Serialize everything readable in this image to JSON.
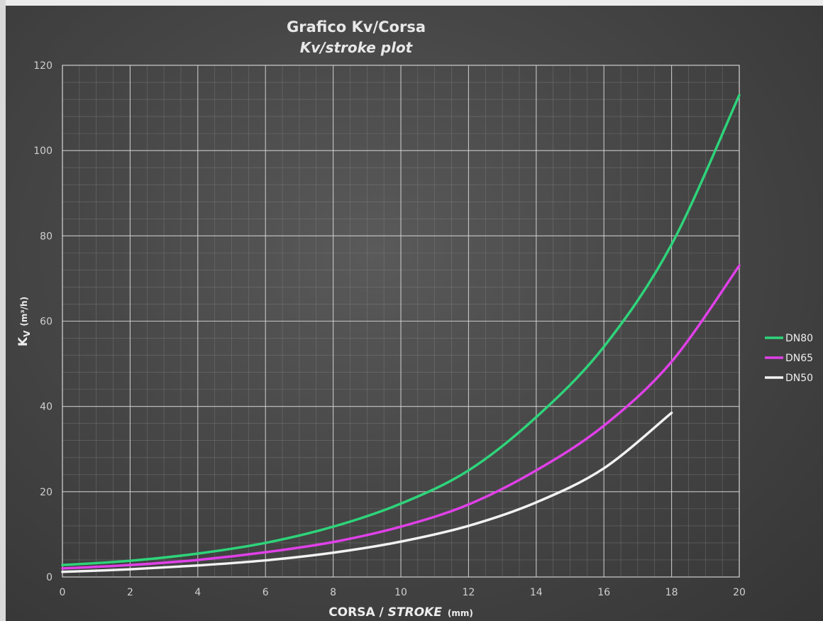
{
  "chart_data": {
    "type": "line",
    "title": "Grafico Kv/Corsa",
    "subtitle": "Kv/stroke plot",
    "xlabel": "CORSA / STROKE",
    "xlabel_main": "CORSA / ",
    "xlabel_italic": "STROKE",
    "xunit": "(mm)",
    "ylabel_symbol": "K",
    "ylabel_sub": "V",
    "yunit": "(m³/h)",
    "xlim": [
      0,
      20
    ],
    "ylim": [
      0,
      120
    ],
    "xticks": [
      "0",
      "2",
      "4",
      "6",
      "8",
      "10",
      "12",
      "14",
      "16",
      "18",
      "20"
    ],
    "yticks": [
      "0",
      "20",
      "40",
      "60",
      "80",
      "100",
      "120"
    ],
    "grid": true,
    "legend_position": "right",
    "series": [
      {
        "name": "DN80",
        "color": "#2ed47a",
        "x": [
          0,
          2,
          4,
          6,
          8,
          10,
          12,
          14,
          16,
          18,
          20
        ],
        "y": [
          2.8,
          3.8,
          5.5,
          8.0,
          11.8,
          17.2,
          25.0,
          37.5,
          54.0,
          78.0,
          113.0
        ]
      },
      {
        "name": "DN65",
        "color": "#e040e8",
        "x": [
          0,
          2,
          4,
          6,
          8,
          10,
          12,
          14,
          16,
          18,
          20
        ],
        "y": [
          2.0,
          2.8,
          4.0,
          5.8,
          8.2,
          11.8,
          17.0,
          25.0,
          35.5,
          50.5,
          73.0
        ]
      },
      {
        "name": "DN50",
        "color": "#f2f2f2",
        "x": [
          0,
          2,
          4,
          6,
          8,
          10,
          12,
          14,
          16,
          18
        ],
        "y": [
          1.2,
          1.8,
          2.7,
          3.9,
          5.7,
          8.3,
          12.0,
          17.5,
          25.5,
          38.5
        ]
      }
    ]
  }
}
